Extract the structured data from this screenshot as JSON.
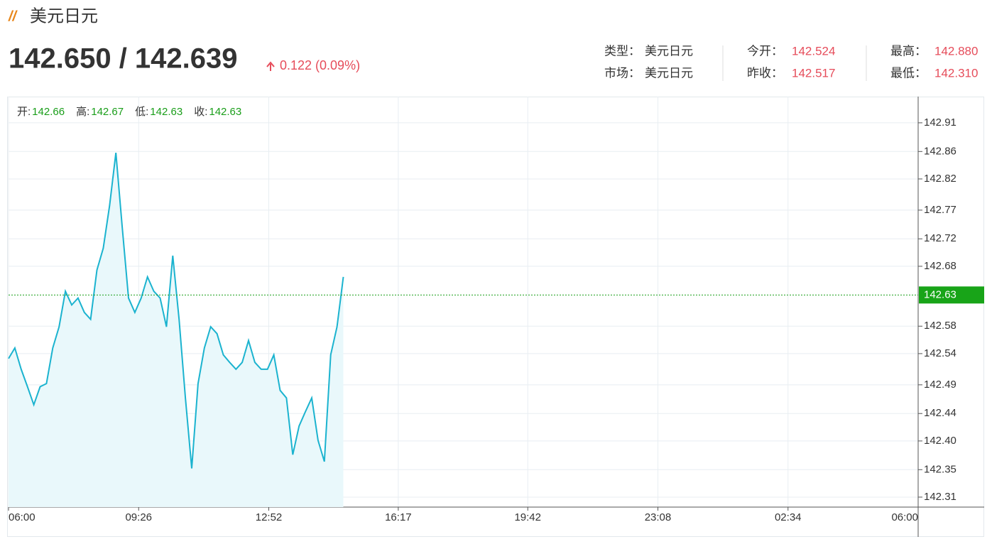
{
  "header": {
    "title": "美元日元",
    "price": "142.650 / 142.639",
    "change": "0.122 (0.09%)",
    "info": [
      [
        {
          "label": "类型：",
          "value": "美元日元"
        },
        {
          "label": "今开：",
          "value": "142.524"
        },
        {
          "label": "最高：",
          "value": "142.880"
        }
      ],
      [
        {
          "label": "市场：",
          "value": "美元日元"
        },
        {
          "label": "昨收：",
          "value": "142.517"
        },
        {
          "label": "最低：",
          "value": "142.310"
        }
      ]
    ]
  },
  "chart_data": {
    "type": "area",
    "color": "#1bb3cf",
    "fill": "#e9f8fb",
    "grid": true,
    "ohlc": [
      {
        "label": "开:",
        "value": "142.66"
      },
      {
        "label": "高:",
        "value": "142.67"
      },
      {
        "label": "低:",
        "value": "142.63"
      },
      {
        "label": "收:",
        "value": "142.63"
      }
    ],
    "x": [
      "06:00",
      "06:10",
      "06:20",
      "06:30",
      "06:40",
      "06:50",
      "07:00",
      "07:10",
      "07:20",
      "07:30",
      "07:40",
      "07:50",
      "08:00",
      "08:10",
      "08:20",
      "08:30",
      "08:40",
      "08:50",
      "09:00",
      "09:10",
      "09:20",
      "09:30",
      "09:40",
      "09:50",
      "10:00",
      "10:10",
      "10:20",
      "10:30",
      "10:40",
      "10:50",
      "11:00",
      "11:10",
      "11:20",
      "11:30",
      "11:40",
      "11:50",
      "12:00",
      "12:10",
      "12:20",
      "12:30",
      "12:40",
      "12:50",
      "13:00",
      "13:10",
      "13:20",
      "13:30",
      "13:40",
      "13:50",
      "14:00",
      "14:10",
      "14:20",
      "14:30",
      "14:40",
      "14:50"
    ],
    "values": [
      142.532,
      142.549,
      142.515,
      142.487,
      142.458,
      142.487,
      142.492,
      142.549,
      142.583,
      142.64,
      142.618,
      142.629,
      142.606,
      142.595,
      142.674,
      142.709,
      142.777,
      142.862,
      142.743,
      142.629,
      142.606,
      142.629,
      142.663,
      142.64,
      142.629,
      142.583,
      142.697,
      142.595,
      142.469,
      142.356,
      142.492,
      142.549,
      142.583,
      142.572,
      142.538,
      142.526,
      142.515,
      142.526,
      142.561,
      142.526,
      142.515,
      142.515,
      142.538,
      142.481,
      142.469,
      142.378,
      142.424,
      142.447,
      142.469,
      142.401,
      142.367,
      142.538,
      142.583,
      142.663
    ],
    "xlim": [
      "06:00",
      "06:00"
    ],
    "xticks": [
      "06:00",
      "09:26",
      "12:52",
      "16:17",
      "19:42",
      "23:08",
      "02:34",
      "06:00"
    ],
    "ylim": [
      142.294,
      142.952
    ],
    "yticks": [
      {
        "value": 142.31,
        "label": "142.31"
      },
      {
        "value": 142.354,
        "label": "142.35"
      },
      {
        "value": 142.4,
        "label": "142.40"
      },
      {
        "value": 142.444,
        "label": "142.44"
      },
      142.49,
      142.54,
      {
        "value": 142.584,
        "label": "142.58"
      },
      142.68,
      {
        "value": 142.724,
        "label": "142.72"
      },
      142.77,
      142.82,
      {
        "value": 142.864,
        "label": "142.86"
      },
      142.91
    ],
    "last_price": {
      "value": 142.634,
      "label": "142.63"
    }
  }
}
